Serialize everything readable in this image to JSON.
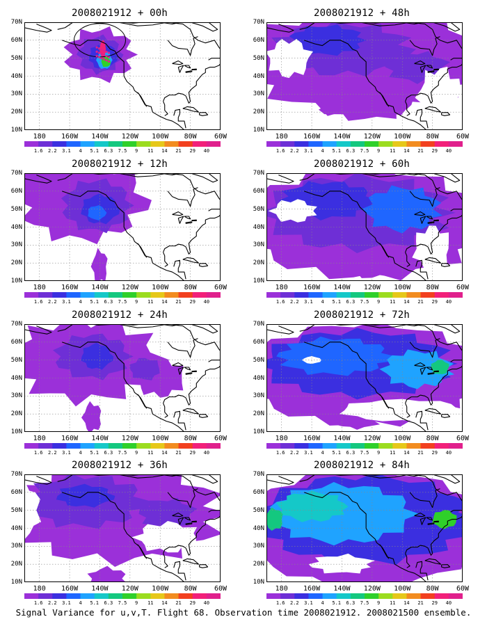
{
  "caption": "Signal Variance for u,v,T. Flight 68. Observation time 2008021912. 2008021500 ensemble.",
  "latitude_labels": [
    "70N",
    "60N",
    "50N",
    "40N",
    "30N",
    "20N",
    "10N"
  ],
  "longitude_labels": [
    "180",
    "160W",
    "140W",
    "120W",
    "100W",
    "80W",
    "60W"
  ],
  "colorbar": {
    "labels": [
      "1.6",
      "2.2",
      "3.1",
      "4",
      "5.1",
      "6.3",
      "7.5",
      "9",
      "11",
      "14",
      "21",
      "29",
      "40"
    ],
    "colors": [
      "#9b30d9",
      "#6e2fd6",
      "#3b2fe0",
      "#1f66ff",
      "#1fa3ff",
      "#15c8c8",
      "#14c87f",
      "#2fd02a",
      "#9bdc1f",
      "#e6c819",
      "#f28c1f",
      "#f2401f",
      "#f2207a",
      "#e0208c"
    ]
  },
  "panels": [
    {
      "title": "2008021912 + 00h",
      "lead_hours": 0
    },
    {
      "title": "2008021912 + 48h",
      "lead_hours": 48
    },
    {
      "title": "2008021912 + 12h",
      "lead_hours": 12
    },
    {
      "title": "2008021912 + 60h",
      "lead_hours": 60
    },
    {
      "title": "2008021912 + 24h",
      "lead_hours": 24
    },
    {
      "title": "2008021912 + 72h",
      "lead_hours": 72
    },
    {
      "title": "2008021912 + 36h",
      "lead_hours": 36
    },
    {
      "title": "2008021912 + 84h",
      "lead_hours": 84
    }
  ]
}
